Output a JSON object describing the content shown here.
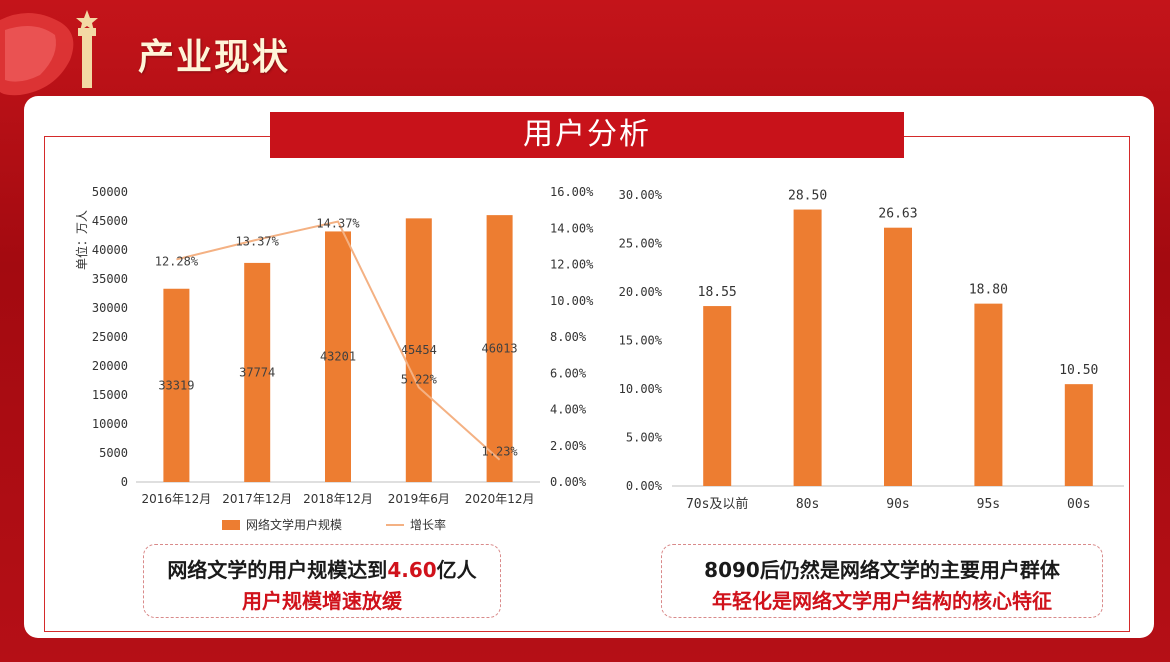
{
  "header": {
    "title": "产业现状"
  },
  "banner": {
    "title": "用户分析"
  },
  "colors": {
    "bar": "#ed7d31",
    "line": "#f4b183",
    "accent": "#c8121a"
  },
  "chart_data": [
    {
      "type": "bar",
      "categories": [
        "2016年12月",
        "2017年12月",
        "2018年12月",
        "2019年6月",
        "2020年12月"
      ],
      "series": [
        {
          "name": "网络文学用户规模",
          "type": "bar",
          "axis": "left",
          "values": [
            33319,
            37774,
            43201,
            45454,
            46013
          ],
          "labels": [
            "33319",
            "37774",
            "43201",
            "45454",
            "46013"
          ]
        },
        {
          "name": "增长率",
          "type": "line",
          "axis": "right",
          "values": [
            12.28,
            13.37,
            14.37,
            5.22,
            1.23
          ],
          "labels": [
            "12.28%",
            "13.37%",
            "14.37%",
            "5.22%",
            "1.23%"
          ]
        }
      ],
      "ylabel": "单位：万人",
      "ylim": [
        0,
        50000
      ],
      "yticks": [
        "0",
        "5000",
        "10000",
        "15000",
        "20000",
        "25000",
        "30000",
        "35000",
        "40000",
        "45000",
        "50000"
      ],
      "y2lim": [
        0,
        16
      ],
      "y2ticks": [
        "0.00%",
        "2.00%",
        "4.00%",
        "6.00%",
        "8.00%",
        "10.00%",
        "12.00%",
        "14.00%",
        "16.00%"
      ],
      "legend": "bottom",
      "grid": false
    },
    {
      "type": "bar",
      "categories": [
        "70s及以前",
        "80s",
        "90s",
        "95s",
        "00s"
      ],
      "values": [
        18.55,
        28.5,
        26.63,
        18.8,
        10.5
      ],
      "labels": [
        "18.55",
        "28.50",
        "26.63",
        "18.80",
        "10.50"
      ],
      "ylim": [
        0,
        30
      ],
      "yticks": [
        "0.00%",
        "5.00%",
        "10.00%",
        "15.00%",
        "20.00%",
        "25.00%",
        "30.00%"
      ],
      "grid": false
    }
  ],
  "captions": {
    "left": {
      "line1_prefix": "网络文学的用户规模达到",
      "line1_highlight": "4.60",
      "line1_suffix": "亿人",
      "line2": "用户规模增速放缓"
    },
    "right": {
      "line1": "8090后仍然是网络文学的主要用户群体",
      "line2": "年轻化是网络文学用户结构的核心特征"
    }
  }
}
